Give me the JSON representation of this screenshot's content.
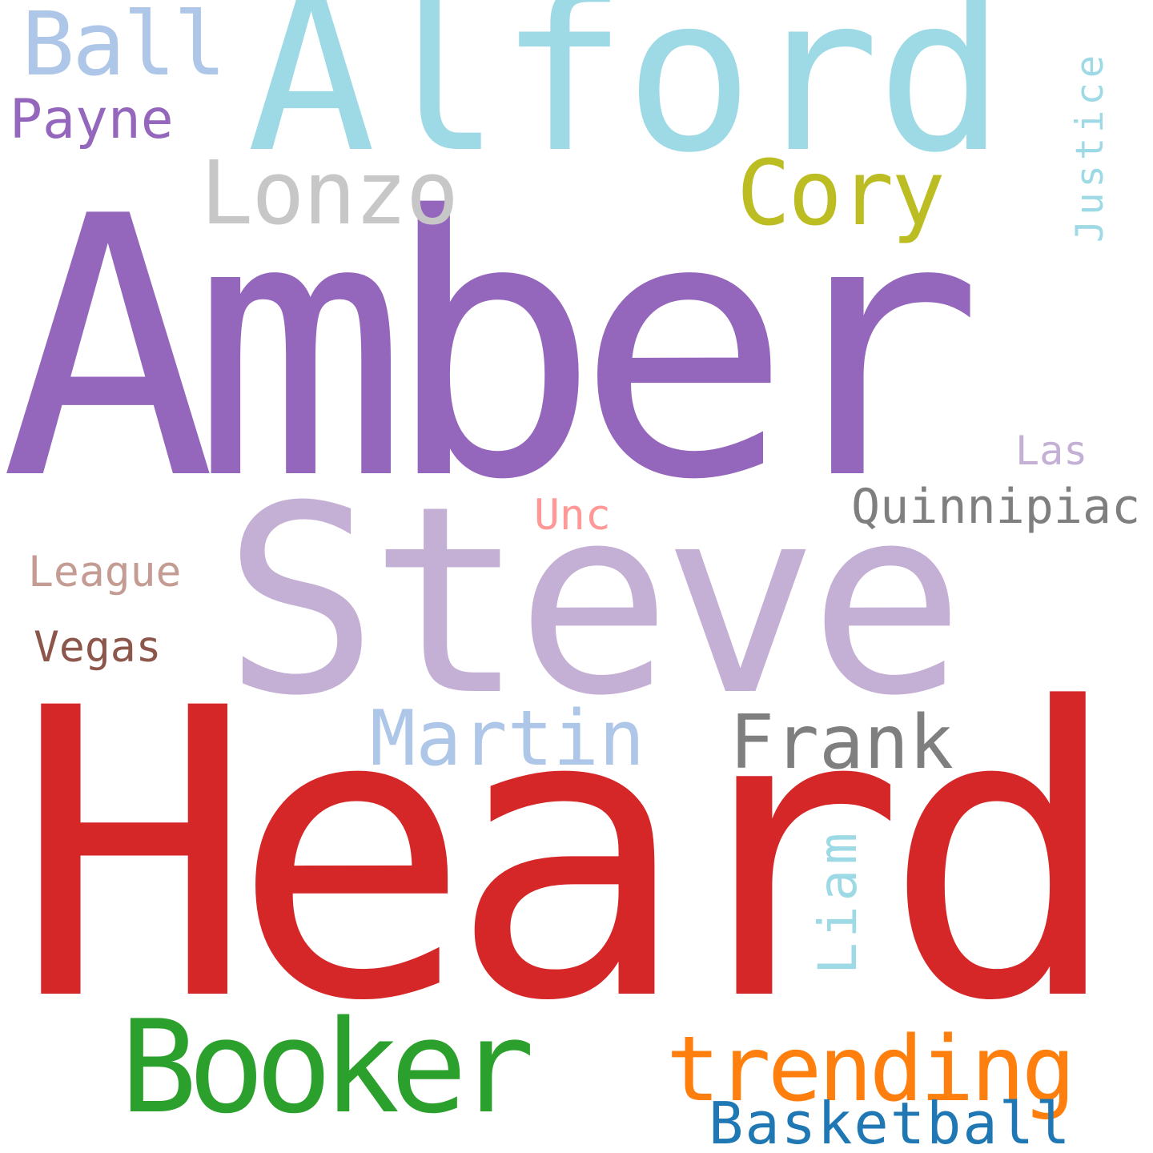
{
  "words": {
    "amber": {
      "text": "Amber",
      "color": "#9467bd"
    },
    "heard": {
      "text": "Heard",
      "color": "#d62728"
    },
    "steve": {
      "text": "Steve",
      "color": "#c5b0d5"
    },
    "alford": {
      "text": "Alford",
      "color": "#9edae5"
    },
    "booker": {
      "text": "Booker",
      "color": "#2ca02c"
    },
    "trending": {
      "text": "trending",
      "color": "#ff7f0e"
    },
    "lonzo": {
      "text": "Lonzo",
      "color": "#c7c7c7"
    },
    "cory": {
      "text": "Cory",
      "color": "#bcbd22"
    },
    "ball": {
      "text": "Ball",
      "color": "#aec7e8"
    },
    "martin": {
      "text": "Martin",
      "color": "#aec7e8"
    },
    "frank": {
      "text": "Frank",
      "color": "#7f7f7f"
    },
    "basketball": {
      "text": "Basketball",
      "color": "#1f77b4"
    },
    "payne": {
      "text": "Payne",
      "color": "#9467bd"
    },
    "quinnipiac": {
      "text": "Quinnipiac",
      "color": "#7f7f7f"
    },
    "league": {
      "text": "League",
      "color": "#c49c94"
    },
    "vegas": {
      "text": "Vegas",
      "color": "#8c564b"
    },
    "unc": {
      "text": "Unc",
      "color": "#ff9896"
    },
    "las": {
      "text": "Las",
      "color": "#c5b0d5"
    },
    "justice": {
      "text": "Justice",
      "color": "#9edae5"
    },
    "liam": {
      "text": "Liam",
      "color": "#9edae5"
    }
  }
}
